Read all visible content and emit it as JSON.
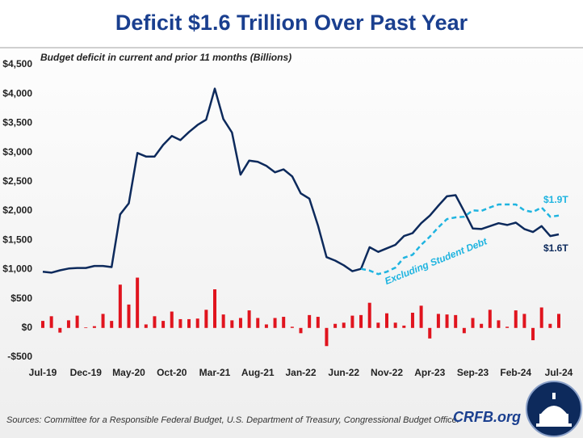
{
  "chart_data": {
    "type": "combo",
    "title": "Deficit $1.6 Trillion Over Past Year",
    "subtitle": "Budget deficit in current and prior 11 months (Billions)",
    "source": "Sources: Committee for a Responsible Federal Budget, U.S. Department of Treasury, Congressional Budget Office.",
    "brand": "CRFB.org",
    "annotations": [
      {
        "text": "$1.9T",
        "color": "#1fb4e0"
      },
      {
        "text": "$1.6T",
        "color": "#0d2a5c"
      },
      {
        "text": "Excluding Student Debt",
        "color": "#1fb4e0"
      }
    ],
    "categories": [
      "Jul-19",
      null,
      null,
      null,
      null,
      "Dec-19",
      null,
      null,
      null,
      null,
      "May-20",
      null,
      null,
      null,
      null,
      "Oct-20",
      null,
      null,
      null,
      null,
      "Mar-21",
      null,
      null,
      null,
      null,
      "Aug-21",
      null,
      null,
      null,
      null,
      "Jan-22",
      null,
      null,
      null,
      null,
      "Jun-22",
      null,
      null,
      null,
      null,
      "Nov-22",
      null,
      null,
      null,
      null,
      "Apr-23",
      null,
      null,
      null,
      null,
      "Sep-23",
      null,
      null,
      null,
      null,
      "Feb-24",
      null,
      null,
      null,
      null,
      "Jul-24"
    ],
    "ylim": [
      -500,
      4500
    ],
    "yticks": [
      {
        "value": -500,
        "label": "-$500"
      },
      {
        "value": 0,
        "label": "$0"
      },
      {
        "value": 500,
        "label": "$500"
      },
      {
        "value": 1000,
        "label": "$1,000"
      },
      {
        "value": 1500,
        "label": "$1,500"
      },
      {
        "value": 2000,
        "label": "$2,000"
      },
      {
        "value": 2500,
        "label": "$2,500"
      },
      {
        "value": 3000,
        "label": "$3,000"
      },
      {
        "value": 3500,
        "label": "$3,500"
      },
      {
        "value": 4000,
        "label": "$4,000"
      },
      {
        "value": 4500,
        "label": "$4,500"
      }
    ],
    "grid": false,
    "series": [
      {
        "type": "bar",
        "color": "#e0141e",
        "values": [
          120,
          200,
          -80,
          130,
          210,
          10,
          30,
          240,
          120,
          740,
          400,
          860,
          60,
          200,
          120,
          280,
          150,
          150,
          160,
          310,
          660,
          230,
          130,
          170,
          300,
          170,
          60,
          170,
          190,
          20,
          -90,
          220,
          190,
          -310,
          70,
          90,
          210,
          220,
          430,
          90,
          250,
          90,
          40,
          260,
          380,
          -180,
          240,
          230,
          220,
          -90,
          170,
          70,
          310,
          130,
          20,
          300,
          240,
          -210,
          350,
          70,
          240
        ]
      },
      {
        "type": "line",
        "color": "#0d2a5c",
        "values": [
          960,
          945,
          985,
          1015,
          1025,
          1025,
          1060,
          1060,
          1040,
          1940,
          2130,
          2990,
          2930,
          2930,
          3130,
          3280,
          3210,
          3350,
          3470,
          3560,
          4090,
          3570,
          3340,
          2620,
          2860,
          2840,
          2770,
          2660,
          2710,
          2590,
          2300,
          2210,
          1750,
          1210,
          1150,
          1070,
          970,
          1010,
          1380,
          1300,
          1360,
          1420,
          1570,
          1620,
          1790,
          1920,
          2090,
          2250,
          2270,
          1990,
          1700,
          1690,
          1740,
          1790,
          1760,
          1800,
          1690,
          1640,
          1740,
          1570,
          1600
        ]
      },
      {
        "type": "dashed",
        "color": "#1fb4e0",
        "values": [
          null,
          null,
          null,
          null,
          null,
          null,
          null,
          null,
          null,
          null,
          null,
          null,
          null,
          null,
          null,
          null,
          null,
          null,
          null,
          null,
          null,
          null,
          null,
          null,
          null,
          null,
          null,
          null,
          null,
          null,
          null,
          null,
          null,
          null,
          null,
          null,
          null,
          1010,
          980,
          920,
          960,
          1030,
          1200,
          1250,
          1420,
          1560,
          1720,
          1860,
          1890,
          1900,
          2010,
          2000,
          2060,
          2110,
          2110,
          2110,
          2010,
          1980,
          2060,
          1900,
          1920
        ]
      }
    ]
  }
}
